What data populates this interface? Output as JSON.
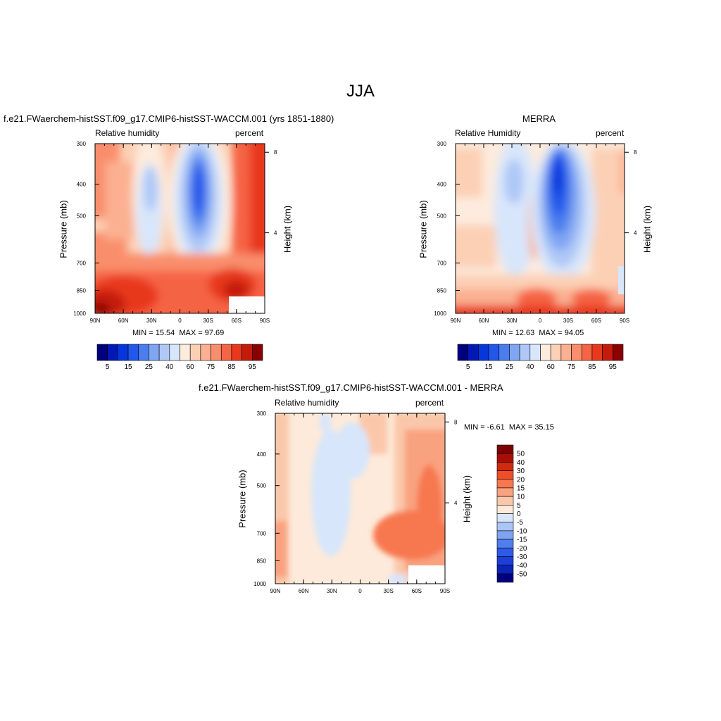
{
  "figure": {
    "title": "JJA"
  },
  "colors": {
    "abs_bar": [
      "#00007f",
      "#0019b5",
      "#0637db",
      "#2257ea",
      "#4a7ded",
      "#80a5f3",
      "#afc8f6",
      "#d8e6fb",
      "#fdebde",
      "#fcd0b5",
      "#fbb091",
      "#f98e6c",
      "#f56445",
      "#e8391e",
      "#c41b0c",
      "#8a0000"
    ],
    "diff_bar": [
      "#000080",
      "#0b24b7",
      "#1b3fd8",
      "#2e5ae8",
      "#4f7fec",
      "#7fa3f2",
      "#abc6f6",
      "#d7e6fb",
      "#fdeada",
      "#fbc7aa",
      "#f9a27f",
      "#f7784f",
      "#f04e2a",
      "#d22a10",
      "#a80f04",
      "#7f0000"
    ]
  },
  "chart_data": [
    {
      "type": "heatmap",
      "title": "f.e21.FWaerchem-histSST.f09_g17.CMIP6-histSST-WACCM.001 (yrs 1851-1880)",
      "left_string": "Relative humidity",
      "right_string": "percent",
      "xlabel": "",
      "ylabel": "Pressure (mb)",
      "y2label": "Height (km)",
      "x_ticks": [
        "90N",
        "60N",
        "30N",
        "0",
        "30S",
        "60S",
        "90S"
      ],
      "y_ticks": [
        "300",
        "400",
        "500",
        "700",
        "850",
        "1000"
      ],
      "y2_ticks": [
        "8",
        "4"
      ],
      "y_scale": "log",
      "ylim": [
        1000,
        300
      ],
      "xlim": [
        90,
        -90
      ],
      "min_label": "MIN =",
      "min_value": "15.54",
      "max_label": "MAX =",
      "max_value": "97.69",
      "colorbar": {
        "orientation": "horizontal",
        "labels": [
          "5",
          "15",
          "25",
          "40",
          "60",
          "75",
          "85",
          "95"
        ]
      }
    },
    {
      "type": "heatmap",
      "title": "MERRA",
      "left_string": "Relative Humidity",
      "right_string": "percent",
      "xlabel": "",
      "ylabel": "Pressure (mb)",
      "y2label": "Height (km)",
      "x_ticks": [
        "90N",
        "60N",
        "30N",
        "0",
        "30S",
        "60S",
        "90S"
      ],
      "y_ticks": [
        "300",
        "400",
        "500",
        "700",
        "850",
        "1000"
      ],
      "y2_ticks": [
        "8",
        "4"
      ],
      "y_scale": "log",
      "ylim": [
        1000,
        300
      ],
      "xlim": [
        90,
        -90
      ],
      "min_label": "MIN =",
      "min_value": "12.63",
      "max_label": "MAX =",
      "max_value": "94.05",
      "colorbar": {
        "orientation": "horizontal",
        "labels": [
          "5",
          "15",
          "25",
          "40",
          "60",
          "75",
          "85",
          "95"
        ]
      }
    },
    {
      "type": "heatmap",
      "title": "f.e21.FWaerchem-histSST.f09_g17.CMIP6-histSST-WACCM.001 - MERRA",
      "left_string": "Relative humidity",
      "right_string": "percent",
      "xlabel": "",
      "ylabel": "Pressure (mb)",
      "y2label": "Height (km)",
      "x_ticks": [
        "90N",
        "60N",
        "30N",
        "0",
        "30S",
        "60S",
        "90S"
      ],
      "y_ticks": [
        "300",
        "400",
        "500",
        "700",
        "850",
        "1000"
      ],
      "y2_ticks": [
        "8",
        "4"
      ],
      "y_scale": "log",
      "ylim": [
        1000,
        300
      ],
      "xlim": [
        90,
        -90
      ],
      "min_label": "MIN =",
      "min_value": "-6.61",
      "max_label": "MAX =",
      "max_value": "35.15",
      "colorbar": {
        "orientation": "vertical",
        "labels": [
          "50",
          "40",
          "30",
          "20",
          "15",
          "10",
          "5",
          "0",
          "-5",
          "-10",
          "-15",
          "-20",
          "-30",
          "-40",
          "-50"
        ]
      }
    }
  ]
}
